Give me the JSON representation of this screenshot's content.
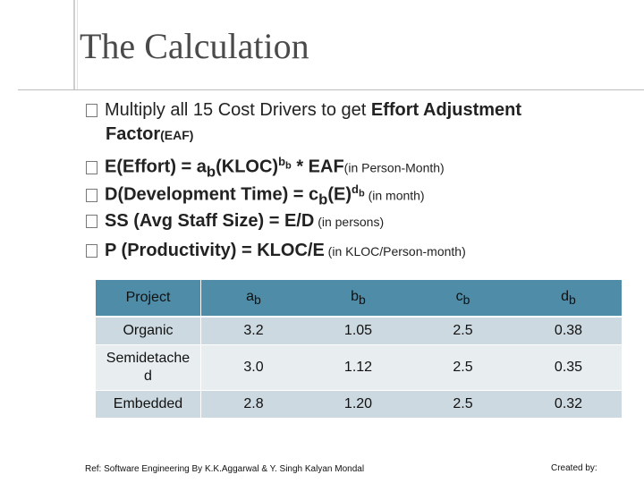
{
  "title": "The Calculation",
  "bullets": [
    {
      "lead": "Multiply all 15 Cost Drivers to get ",
      "bold": "Effort Adjustment",
      "cont_bold": "Factor",
      "cont_small": "(EAF)"
    },
    {
      "main": "E(Effort) = a",
      "sub": "b",
      "mid": "(KLOC)",
      "sup": "b",
      "supsub": "b",
      "tail": " * EAF",
      "note": "(in Person-Month)"
    },
    {
      "main": "D(Development Time) = c",
      "sub": "b",
      "mid": "(E)",
      "sup": "d",
      "supsub": "b",
      "note": " (in month)"
    },
    {
      "main": "SS (Avg Staff Size) = E/D",
      "note": " (in persons)"
    },
    {
      "main": "P (Productivity) = KLOC/E",
      "note": " (in KLOC/Person-month)"
    }
  ],
  "table": {
    "headers": [
      "Project",
      "a",
      "b",
      "c",
      "d"
    ],
    "header_sub": "b",
    "rows": [
      [
        "Organic",
        "3.2",
        "1.05",
        "2.5",
        "0.38"
      ],
      [
        "Semidetached",
        "3.0",
        "1.12",
        "2.5",
        "0.35"
      ],
      [
        "Embedded",
        "2.8",
        "1.20",
        "2.5",
        "0.32"
      ]
    ]
  },
  "footer": {
    "ref": "Ref: Software Engineering By K.K.Aggarwal & Y. Singh Kalyan Mondal",
    "created": "Created by:"
  },
  "colors": {
    "header_bg": "#4e8ca7",
    "row_dark": "#cdd9e0",
    "row_light": "#e8edf0",
    "title": "#4a4a4a"
  }
}
